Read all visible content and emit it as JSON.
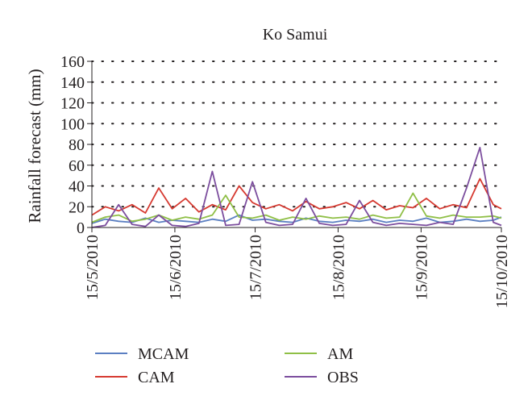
{
  "chart_data": {
    "type": "line",
    "title": "Ko Samui",
    "xlabel": "",
    "ylabel": "Rainfall forecast (mm)",
    "ylim": [
      0,
      160
    ],
    "yticks": [
      0,
      20,
      40,
      60,
      80,
      100,
      120,
      140,
      160
    ],
    "x_start": "15/5/2010",
    "x_end": "15/10/2010",
    "xtick_labels": [
      "15/5/2010",
      "15/6/2010",
      "15/7/2010",
      "15/8/2010",
      "15/9/2010",
      "15/10/2010"
    ],
    "grid": "dotted horizontal",
    "legend_position": "bottom",
    "x": [
      "15/5/2010",
      "20/5/2010",
      "25/5/2010",
      "30/5/2010",
      "4/6/2010",
      "9/6/2010",
      "14/6/2010",
      "19/6/2010",
      "24/6/2010",
      "29/6/2010",
      "4/7/2010",
      "9/7/2010",
      "14/7/2010",
      "19/7/2010",
      "24/7/2010",
      "29/7/2010",
      "3/8/2010",
      "8/8/2010",
      "13/8/2010",
      "18/8/2010",
      "23/8/2010",
      "28/8/2010",
      "2/9/2010",
      "7/9/2010",
      "12/9/2010",
      "17/9/2010",
      "22/9/2010",
      "27/9/2010",
      "2/10/2010",
      "7/10/2010",
      "12/10/2010",
      "15/10/2010"
    ],
    "series": [
      {
        "name": "MCAM",
        "color": "#5b7fc2",
        "values": [
          4,
          8,
          6,
          5,
          9,
          5,
          7,
          6,
          5,
          8,
          6,
          12,
          7,
          8,
          6,
          5,
          9,
          6,
          5,
          7,
          6,
          8,
          5,
          7,
          6,
          9,
          5,
          6,
          8,
          6,
          7,
          10
        ]
      },
      {
        "name": "CAM",
        "color": "#d63a31",
        "values": [
          12,
          20,
          16,
          22,
          14,
          38,
          18,
          28,
          15,
          22,
          17,
          40,
          24,
          18,
          22,
          16,
          25,
          18,
          20,
          24,
          18,
          26,
          17,
          21,
          19,
          28,
          18,
          22,
          19,
          47,
          22,
          18
        ]
      },
      {
        "name": "AM",
        "color": "#8fbf46",
        "values": [
          5,
          10,
          12,
          6,
          8,
          12,
          7,
          10,
          8,
          12,
          31,
          10,
          9,
          12,
          7,
          10,
          8,
          11,
          9,
          10,
          8,
          12,
          9,
          10,
          33,
          11,
          9,
          12,
          10,
          10,
          11,
          9
        ]
      },
      {
        "name": "OBS",
        "color": "#7c4e9e",
        "values": [
          0,
          2,
          22,
          3,
          1,
          12,
          2,
          1,
          4,
          54,
          2,
          3,
          44,
          5,
          2,
          3,
          28,
          4,
          2,
          3,
          26,
          5,
          2,
          4,
          3,
          2,
          5,
          3,
          38,
          77,
          5,
          2
        ]
      }
    ]
  }
}
